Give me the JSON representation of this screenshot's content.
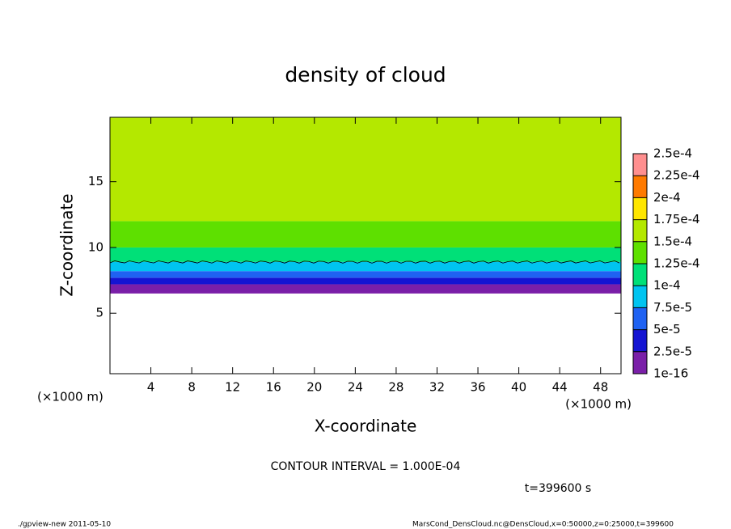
{
  "chart_data": {
    "type": "contour",
    "title": "density of cloud",
    "x_label": "X-coordinate",
    "y_label": "Z-coordinate",
    "x_unit": "(×1000 m)",
    "xlim": [
      0,
      50
    ],
    "xticks": [
      4,
      8,
      12,
      16,
      20,
      24,
      28,
      32,
      36,
      40,
      44,
      48
    ],
    "ylim": [
      0.4,
      19.9
    ],
    "yticks": [
      5,
      10,
      15
    ],
    "z_bins": [
      6.5,
      7.2,
      7.7,
      8.2,
      8.9,
      10,
      12,
      19.9
    ],
    "values": [
      1e-05,
      3.5e-05,
      6e-05,
      9e-05,
      0.00011,
      0.00014,
      0.000155
    ],
    "contours": [
      {
        "level": 0.0001,
        "z": 8.9
      }
    ],
    "levels": [
      {
        "value": 1e-16,
        "label": "1e-16"
      },
      {
        "value": 2.5e-05,
        "label": "2.5e-5"
      },
      {
        "value": 5e-05,
        "label": "5e-5"
      },
      {
        "value": 7.5e-05,
        "label": "7.5e-5"
      },
      {
        "value": 0.0001,
        "label": "1e-4"
      },
      {
        "value": 0.000125,
        "label": "1.25e-4"
      },
      {
        "value": 0.00015,
        "label": "1.5e-4"
      },
      {
        "value": 0.000175,
        "label": "1.75e-4"
      },
      {
        "value": 0.0002,
        "label": "2e-4"
      },
      {
        "value": 0.000225,
        "label": "2.25e-4"
      },
      {
        "value": 0.00025,
        "label": "2.5e-4"
      }
    ],
    "colors": [
      "#7a1fa8",
      "#1414d2",
      "#1f62f2",
      "#00c4f0",
      "#00e078",
      "#5ee000",
      "#b4e800",
      "#ffe600",
      "#ff7a00",
      "#ff8f8f"
    ],
    "contour_interval": "CONTOUR INTERVAL = 1.000E-04",
    "time_label": "t=399600 s",
    "footer_left": "./gpview-new  2011-05-10",
    "footer_right": "MarsCond_DensCloud.nc@DensCloud,x=0:50000,z=0:25000,t=399600"
  }
}
